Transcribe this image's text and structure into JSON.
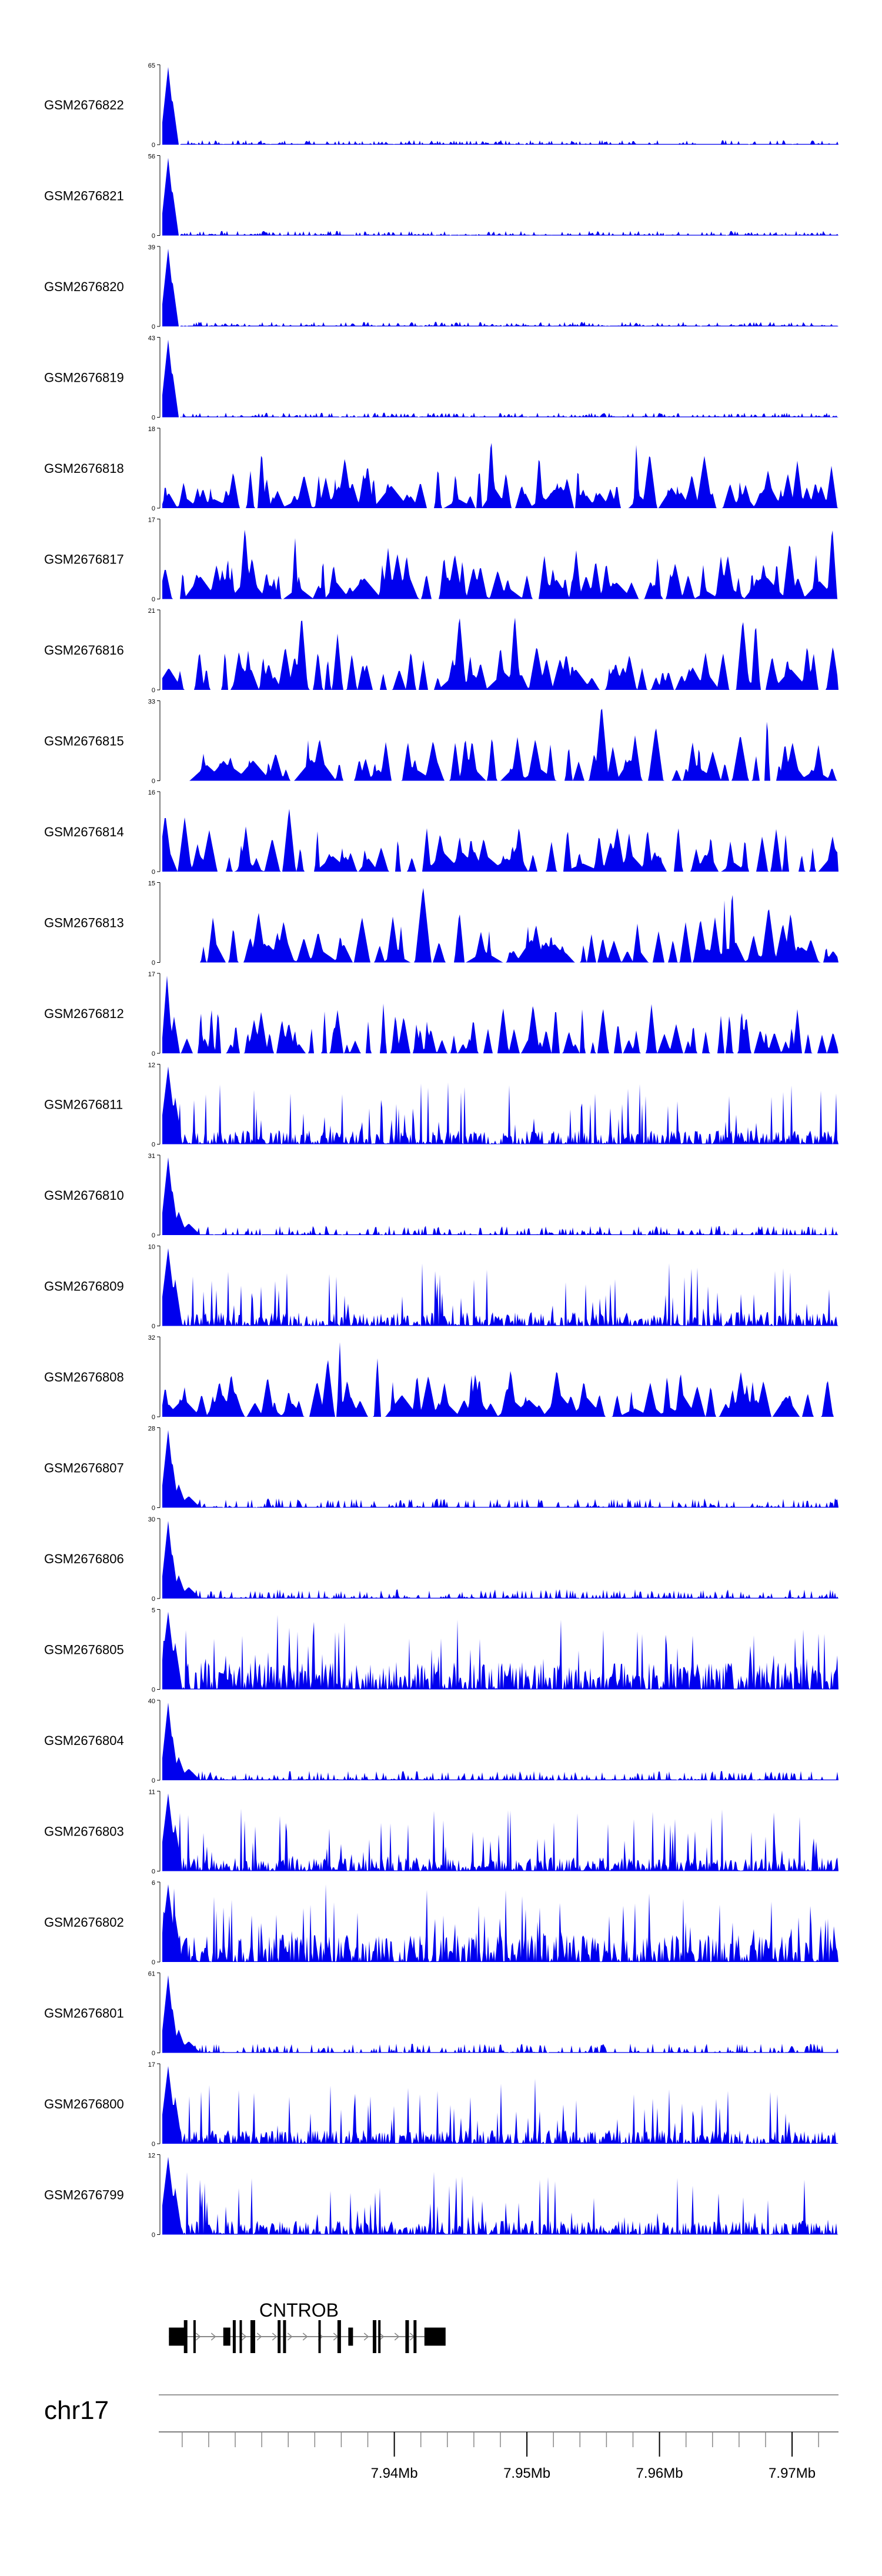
{
  "chart_data": {
    "type": "area",
    "title": "",
    "xlabel": "",
    "ylabel": "",
    "chromosome": "chr17",
    "x_range_mb": [
      7.9225,
      7.9735
    ],
    "x_ticks": [
      {
        "value": 7.94,
        "label": "7.94Mb"
      },
      {
        "value": 7.95,
        "label": "7.95Mb"
      },
      {
        "value": 7.96,
        "label": "7.96Mb"
      },
      {
        "value": 7.97,
        "label": "7.97Mb"
      }
    ],
    "gene": {
      "name": "CNTROB",
      "start_mb": 7.923,
      "end_mb": 7.9435
    },
    "series": [
      {
        "name": "GSM2676822",
        "ymax": 65,
        "ymin": 0
      },
      {
        "name": "GSM2676821",
        "ymax": 56,
        "ymin": 0
      },
      {
        "name": "GSM2676820",
        "ymax": 39,
        "ymin": 0
      },
      {
        "name": "GSM2676819",
        "ymax": 43,
        "ymin": 0
      },
      {
        "name": "GSM2676818",
        "ymax": 18,
        "ymin": 0
      },
      {
        "name": "GSM2676817",
        "ymax": 17,
        "ymin": 0
      },
      {
        "name": "GSM2676816",
        "ymax": 21,
        "ymin": 0
      },
      {
        "name": "GSM2676815",
        "ymax": 33,
        "ymin": 0
      },
      {
        "name": "GSM2676814",
        "ymax": 16,
        "ymin": 0
      },
      {
        "name": "GSM2676813",
        "ymax": 15,
        "ymin": 0
      },
      {
        "name": "GSM2676812",
        "ymax": 17,
        "ymin": 0
      },
      {
        "name": "GSM2676811",
        "ymax": 12,
        "ymin": 0
      },
      {
        "name": "GSM2676810",
        "ymax": 31,
        "ymin": 0
      },
      {
        "name": "GSM2676809",
        "ymax": 10,
        "ymin": 0
      },
      {
        "name": "GSM2676808",
        "ymax": 32,
        "ymin": 0
      },
      {
        "name": "GSM2676807",
        "ymax": 28,
        "ymin": 0
      },
      {
        "name": "GSM2676806",
        "ymax": 30,
        "ymin": 0
      },
      {
        "name": "GSM2676805",
        "ymax": 5,
        "ymin": 0
      },
      {
        "name": "GSM2676804",
        "ymax": 40,
        "ymin": 0
      },
      {
        "name": "GSM2676803",
        "ymax": 11,
        "ymin": 0
      },
      {
        "name": "GSM2676802",
        "ymax": 6,
        "ymin": 0
      },
      {
        "name": "GSM2676801",
        "ymax": 61,
        "ymin": 0
      },
      {
        "name": "GSM2676800",
        "ymax": 17,
        "ymin": 0
      },
      {
        "name": "GSM2676799",
        "ymax": 12,
        "ymin": 0
      }
    ],
    "colors": {
      "signal": "#0000ee",
      "axis": "#000000",
      "gene": "#000000",
      "intron_arrow": "#888888"
    }
  }
}
